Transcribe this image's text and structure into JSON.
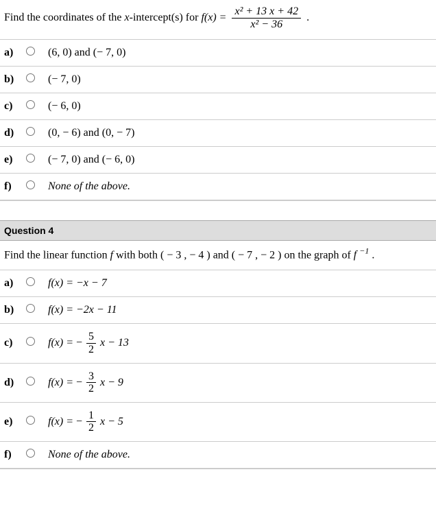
{
  "q3": {
    "prompt_prefix": "Find the coordinates of the ",
    "prompt_var": "x",
    "prompt_mid": "-intercept(s) for ",
    "prompt_func": "f(x) = ",
    "frac_num": "x² + 13 x + 42",
    "frac_den": "x² − 36",
    "prompt_suffix": " .",
    "options": [
      {
        "label": "a)",
        "text": "(6, 0) and (− 7, 0)",
        "italic": false
      },
      {
        "label": "b)",
        "text": "(− 7, 0)",
        "italic": false
      },
      {
        "label": "c)",
        "text": "(− 6, 0)",
        "italic": false
      },
      {
        "label": "d)",
        "text": "(0, − 6) and (0, − 7)",
        "italic": false
      },
      {
        "label": "e)",
        "text": "(− 7, 0) and (− 6, 0)",
        "italic": false
      },
      {
        "label": "f)",
        "text": "None of the above.",
        "italic": true
      }
    ]
  },
  "q4": {
    "header": "Question 4",
    "prompt_a": "Find the linear function ",
    "prompt_f": " f ",
    "prompt_b": " with both ( − 3 , − 4 ) and ( − 7 , − 2 ) on the graph of ",
    "prompt_inv": " f ⁻¹ ",
    "prompt_end": ".",
    "options": [
      {
        "label": "a)",
        "lhs": "f(x) = ",
        "rhs": "−x − 7"
      },
      {
        "label": "b)",
        "lhs": "f(x) = ",
        "rhs": "−2x − 11"
      },
      {
        "label": "c)",
        "lhs": "f(x) = ",
        "pre": "− ",
        "frac_n": "5",
        "frac_d": "2",
        "post": " x − 13"
      },
      {
        "label": "d)",
        "lhs": "f(x) = ",
        "pre": "− ",
        "frac_n": "3",
        "frac_d": "2",
        "post": " x − 9"
      },
      {
        "label": "e)",
        "lhs": "f(x) = ",
        "pre": "− ",
        "frac_n": "1",
        "frac_d": "2",
        "post": " x − 5"
      },
      {
        "label": "f)",
        "text": "None of the above.",
        "italic": true
      }
    ]
  }
}
